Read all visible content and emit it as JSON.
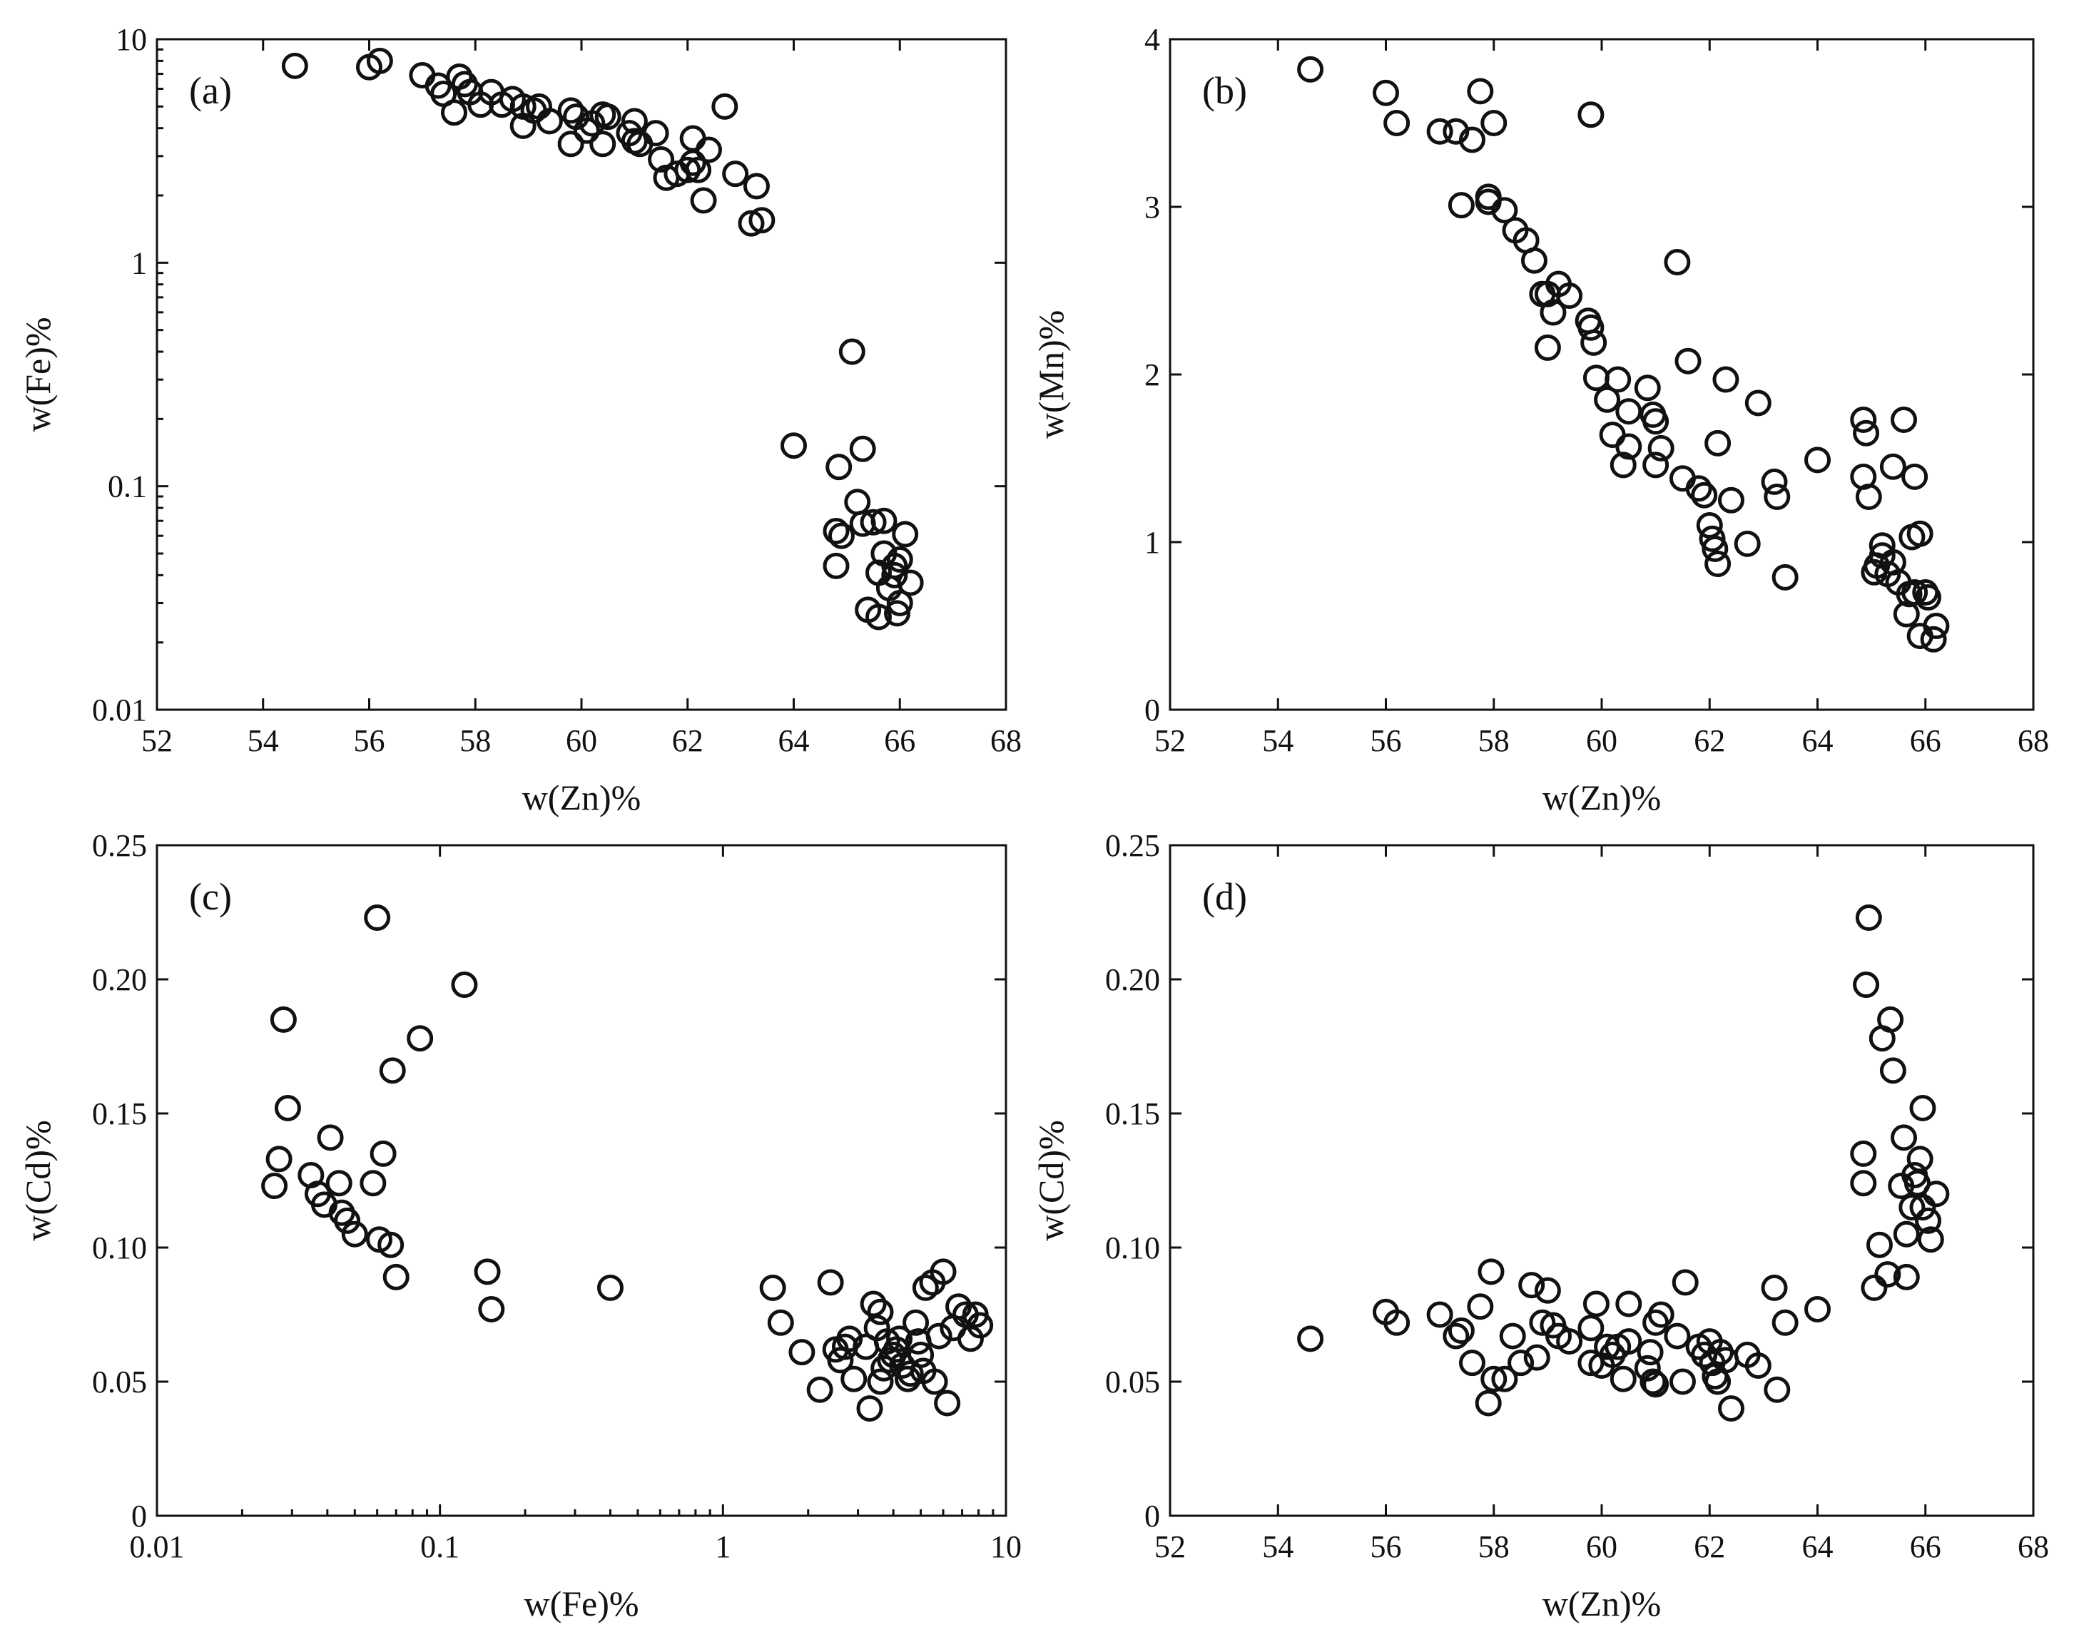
{
  "chart_data": [
    {
      "id": "a",
      "type": "scatter",
      "panel_label": "(a)",
      "xlabel": "w(Zn)%",
      "ylabel": "w(Fe)%",
      "xscale": "linear",
      "yscale": "log",
      "xlim": [
        52,
        68
      ],
      "ylim": [
        0.01,
        10
      ],
      "x_ticks": [
        52,
        54,
        56,
        58,
        60,
        62,
        64,
        66,
        68
      ],
      "x_tick_labels": [
        "52",
        "54",
        "56",
        "58",
        "60",
        "62",
        "64",
        "66",
        "68"
      ],
      "y_ticks": [
        0.01,
        0.1,
        1,
        10
      ],
      "y_tick_labels": [
        "0.01",
        "0.1",
        "1",
        "10"
      ],
      "points": [
        [
          54.6,
          7.6
        ],
        [
          56.0,
          7.5
        ],
        [
          56.2,
          8.0
        ],
        [
          57.0,
          6.9
        ],
        [
          57.3,
          6.2
        ],
        [
          57.4,
          5.7
        ],
        [
          57.6,
          4.7
        ],
        [
          57.7,
          6.8
        ],
        [
          57.8,
          6.3
        ],
        [
          57.9,
          5.8
        ],
        [
          58.1,
          5.1
        ],
        [
          58.3,
          5.8
        ],
        [
          58.5,
          5.1
        ],
        [
          58.7,
          5.4
        ],
        [
          58.9,
          4.1
        ],
        [
          58.9,
          5.0
        ],
        [
          59.1,
          4.8
        ],
        [
          59.2,
          5.0
        ],
        [
          59.4,
          4.3
        ],
        [
          59.8,
          4.8
        ],
        [
          59.9,
          4.5
        ],
        [
          59.8,
          3.4
        ],
        [
          60.1,
          3.9
        ],
        [
          60.2,
          4.2
        ],
        [
          60.4,
          4.6
        ],
        [
          60.5,
          4.5
        ],
        [
          60.4,
          3.4
        ],
        [
          60.9,
          3.8
        ],
        [
          61.0,
          4.3
        ],
        [
          61.0,
          3.5
        ],
        [
          61.1,
          3.4
        ],
        [
          61.4,
          3.8
        ],
        [
          61.5,
          2.9
        ],
        [
          61.6,
          2.4
        ],
        [
          61.8,
          2.5
        ],
        [
          62.0,
          2.6
        ],
        [
          62.1,
          2.8
        ],
        [
          62.1,
          3.6
        ],
        [
          62.2,
          2.6
        ],
        [
          62.3,
          1.9
        ],
        [
          62.4,
          3.2
        ],
        [
          62.7,
          5.0
        ],
        [
          62.9,
          2.5
        ],
        [
          63.2,
          1.5
        ],
        [
          63.3,
          2.2
        ],
        [
          63.4,
          1.55
        ],
        [
          64.0,
          0.152
        ],
        [
          64.8,
          0.044
        ],
        [
          64.8,
          0.063
        ],
        [
          64.85,
          0.122
        ],
        [
          64.9,
          0.06
        ],
        [
          65.1,
          0.4
        ],
        [
          65.2,
          0.085
        ],
        [
          65.3,
          0.147
        ],
        [
          65.3,
          0.068
        ],
        [
          65.4,
          0.028
        ],
        [
          65.5,
          0.069
        ],
        [
          65.6,
          0.026
        ],
        [
          65.6,
          0.041
        ],
        [
          65.7,
          0.07
        ],
        [
          65.7,
          0.05
        ],
        [
          65.8,
          0.035
        ],
        [
          65.9,
          0.04
        ],
        [
          65.9,
          0.044
        ],
        [
          66.0,
          0.047
        ],
        [
          65.95,
          0.027
        ],
        [
          66.0,
          0.03
        ],
        [
          66.1,
          0.061
        ],
        [
          66.2,
          0.037
        ]
      ]
    },
    {
      "id": "b",
      "type": "scatter",
      "panel_label": "(b)",
      "xlabel": "w(Zn)%",
      "ylabel": "w(Mn)%",
      "xscale": "linear",
      "yscale": "linear",
      "xlim": [
        52,
        68
      ],
      "ylim": [
        0,
        4
      ],
      "x_ticks": [
        52,
        54,
        56,
        58,
        60,
        62,
        64,
        66,
        68
      ],
      "x_tick_labels": [
        "52",
        "54",
        "56",
        "58",
        "60",
        "62",
        "64",
        "66",
        "68"
      ],
      "y_ticks": [
        0,
        1,
        2,
        3,
        4
      ],
      "y_tick_labels": [
        "0",
        "1",
        "2",
        "3",
        "4"
      ],
      "points": [
        [
          54.6,
          3.82
        ],
        [
          56.0,
          3.68
        ],
        [
          56.2,
          3.5
        ],
        [
          57.0,
          3.45
        ],
        [
          57.3,
          3.45
        ],
        [
          57.4,
          3.01
        ],
        [
          57.6,
          3.4
        ],
        [
          57.75,
          3.69
        ],
        [
          57.9,
          3.03
        ],
        [
          57.9,
          3.06
        ],
        [
          58.0,
          3.5
        ],
        [
          58.2,
          2.98
        ],
        [
          58.4,
          2.86
        ],
        [
          58.6,
          2.8
        ],
        [
          58.75,
          2.68
        ],
        [
          58.9,
          2.48
        ],
        [
          59.0,
          2.48
        ],
        [
          59.0,
          2.16
        ],
        [
          59.1,
          2.37
        ],
        [
          59.2,
          2.54
        ],
        [
          59.4,
          2.47
        ],
        [
          59.8,
          3.55
        ],
        [
          59.75,
          2.32
        ],
        [
          59.8,
          2.28
        ],
        [
          59.85,
          2.19
        ],
        [
          59.9,
          1.98
        ],
        [
          60.1,
          1.85
        ],
        [
          60.2,
          1.64
        ],
        [
          60.3,
          1.97
        ],
        [
          60.4,
          1.46
        ],
        [
          60.5,
          1.78
        ],
        [
          60.5,
          1.57
        ],
        [
          60.85,
          1.92
        ],
        [
          60.95,
          1.76
        ],
        [
          61.0,
          1.72
        ],
        [
          61.0,
          1.46
        ],
        [
          61.1,
          1.56
        ],
        [
          61.4,
          2.67
        ],
        [
          61.5,
          1.38
        ],
        [
          61.6,
          2.08
        ],
        [
          61.8,
          1.32
        ],
        [
          61.9,
          1.28
        ],
        [
          62.0,
          1.1
        ],
        [
          62.05,
          1.02
        ],
        [
          62.1,
          0.96
        ],
        [
          62.15,
          0.87
        ],
        [
          62.15,
          1.59
        ],
        [
          62.3,
          1.97
        ],
        [
          62.4,
          1.25
        ],
        [
          62.7,
          0.99
        ],
        [
          62.9,
          1.83
        ],
        [
          63.2,
          1.36
        ],
        [
          63.25,
          1.27
        ],
        [
          63.4,
          0.79
        ],
        [
          64.0,
          1.49
        ],
        [
          64.85,
          1.73
        ],
        [
          64.85,
          1.39
        ],
        [
          64.9,
          1.65
        ],
        [
          64.95,
          1.27
        ],
        [
          65.05,
          0.82
        ],
        [
          65.1,
          0.86
        ],
        [
          65.2,
          0.98
        ],
        [
          65.2,
          0.92
        ],
        [
          65.3,
          0.81
        ],
        [
          65.4,
          0.88
        ],
        [
          65.4,
          1.45
        ],
        [
          65.5,
          0.76
        ],
        [
          65.6,
          1.73
        ],
        [
          65.65,
          0.57
        ],
        [
          65.7,
          0.69
        ],
        [
          65.75,
          1.03
        ],
        [
          65.8,
          1.39
        ],
        [
          65.8,
          0.7
        ],
        [
          65.9,
          1.05
        ],
        [
          65.9,
          0.44
        ],
        [
          66.0,
          0.7
        ],
        [
          66.05,
          0.67
        ],
        [
          66.15,
          0.42
        ],
        [
          66.2,
          0.5
        ]
      ]
    },
    {
      "id": "c",
      "type": "scatter",
      "panel_label": "(c)",
      "xlabel": "w(Fe)%",
      "ylabel": "w(Cd)%",
      "xscale": "log",
      "yscale": "linear",
      "xlim": [
        0.01,
        10
      ],
      "ylim": [
        0,
        0.25
      ],
      "x_ticks": [
        0.01,
        0.1,
        1,
        10
      ],
      "x_tick_labels": [
        "0.01",
        "0.1",
        "1",
        "10"
      ],
      "y_ticks": [
        0,
        0.05,
        0.1,
        0.15,
        0.2,
        0.25
      ],
      "y_tick_labels": [
        "0",
        "0.05",
        "0.10",
        "0.15",
        "0.20",
        "0.25"
      ],
      "points": [
        [
          0.026,
          0.123
        ],
        [
          0.027,
          0.133
        ],
        [
          0.028,
          0.185
        ],
        [
          0.029,
          0.152
        ],
        [
          0.035,
          0.127
        ],
        [
          0.037,
          0.12
        ],
        [
          0.039,
          0.116
        ],
        [
          0.041,
          0.141
        ],
        [
          0.044,
          0.124
        ],
        [
          0.045,
          0.113
        ],
        [
          0.047,
          0.11
        ],
        [
          0.05,
          0.105
        ],
        [
          0.058,
          0.124
        ],
        [
          0.06,
          0.223
        ],
        [
          0.061,
          0.103
        ],
        [
          0.063,
          0.135
        ],
        [
          0.067,
          0.101
        ],
        [
          0.068,
          0.166
        ],
        [
          0.07,
          0.089
        ],
        [
          0.085,
          0.178
        ],
        [
          0.122,
          0.198
        ],
        [
          0.147,
          0.091
        ],
        [
          0.152,
          0.077
        ],
        [
          0.4,
          0.085
        ],
        [
          1.5,
          0.085
        ],
        [
          1.6,
          0.072
        ],
        [
          1.9,
          0.061
        ],
        [
          2.2,
          0.047
        ],
        [
          2.4,
          0.087
        ],
        [
          2.5,
          0.062
        ],
        [
          2.6,
          0.058
        ],
        [
          2.7,
          0.063
        ],
        [
          2.8,
          0.066
        ],
        [
          2.9,
          0.051
        ],
        [
          3.2,
          0.063
        ],
        [
          3.3,
          0.04
        ],
        [
          3.4,
          0.079
        ],
        [
          3.5,
          0.07
        ],
        [
          3.6,
          0.05
        ],
        [
          3.6,
          0.076
        ],
        [
          3.7,
          0.055
        ],
        [
          3.8,
          0.065
        ],
        [
          3.9,
          0.058
        ],
        [
          4.0,
          0.06
        ],
        [
          4.1,
          0.062
        ],
        [
          4.2,
          0.066
        ],
        [
          4.3,
          0.056
        ],
        [
          4.5,
          0.051
        ],
        [
          4.6,
          0.053
        ],
        [
          4.8,
          0.072
        ],
        [
          4.9,
          0.065
        ],
        [
          5.0,
          0.06
        ],
        [
          5.1,
          0.054
        ],
        [
          5.2,
          0.085
        ],
        [
          5.5,
          0.087
        ],
        [
          5.6,
          0.05
        ],
        [
          5.8,
          0.067
        ],
        [
          6.0,
          0.091
        ],
        [
          6.2,
          0.042
        ],
        [
          6.5,
          0.07
        ],
        [
          6.8,
          0.078
        ],
        [
          7.2,
          0.075
        ],
        [
          7.5,
          0.066
        ],
        [
          7.8,
          0.075
        ],
        [
          8.1,
          0.071
        ]
      ]
    },
    {
      "id": "d",
      "type": "scatter",
      "panel_label": "(d)",
      "xlabel": "w(Zn)%",
      "ylabel": "w(Cd)%",
      "xscale": "linear",
      "yscale": "linear",
      "xlim": [
        52,
        68
      ],
      "ylim": [
        0,
        0.25
      ],
      "x_ticks": [
        52,
        54,
        56,
        58,
        60,
        62,
        64,
        66,
        68
      ],
      "x_tick_labels": [
        "52",
        "54",
        "56",
        "58",
        "60",
        "62",
        "64",
        "66",
        "68"
      ],
      "y_ticks": [
        0,
        0.05,
        0.1,
        0.15,
        0.2,
        0.25
      ],
      "y_tick_labels": [
        "0",
        "0.05",
        "0.10",
        "0.15",
        "0.20",
        "0.25"
      ],
      "points": [
        [
          54.6,
          0.066
        ],
        [
          56.0,
          0.076
        ],
        [
          56.2,
          0.072
        ],
        [
          57.0,
          0.075
        ],
        [
          57.3,
          0.067
        ],
        [
          57.4,
          0.069
        ],
        [
          57.6,
          0.057
        ],
        [
          57.75,
          0.078
        ],
        [
          57.9,
          0.042
        ],
        [
          57.95,
          0.091
        ],
        [
          58.0,
          0.051
        ],
        [
          58.2,
          0.051
        ],
        [
          58.35,
          0.067
        ],
        [
          58.5,
          0.057
        ],
        [
          58.7,
          0.086
        ],
        [
          58.8,
          0.059
        ],
        [
          58.9,
          0.072
        ],
        [
          59.0,
          0.084
        ],
        [
          59.1,
          0.071
        ],
        [
          59.2,
          0.067
        ],
        [
          59.4,
          0.065
        ],
        [
          59.8,
          0.07
        ],
        [
          59.8,
          0.057
        ],
        [
          59.9,
          0.079
        ],
        [
          60.0,
          0.056
        ],
        [
          60.1,
          0.063
        ],
        [
          60.2,
          0.06
        ],
        [
          60.3,
          0.063
        ],
        [
          60.4,
          0.051
        ],
        [
          60.5,
          0.079
        ],
        [
          60.5,
          0.065
        ],
        [
          60.85,
          0.055
        ],
        [
          60.9,
          0.061
        ],
        [
          60.95,
          0.05
        ],
        [
          61.0,
          0.072
        ],
        [
          61.0,
          0.049
        ],
        [
          61.1,
          0.075
        ],
        [
          61.4,
          0.067
        ],
        [
          61.5,
          0.05
        ],
        [
          61.55,
          0.087
        ],
        [
          61.8,
          0.063
        ],
        [
          61.9,
          0.06
        ],
        [
          62.0,
          0.065
        ],
        [
          62.05,
          0.057
        ],
        [
          62.1,
          0.052
        ],
        [
          62.15,
          0.05
        ],
        [
          62.2,
          0.061
        ],
        [
          62.3,
          0.058
        ],
        [
          62.4,
          0.04
        ],
        [
          62.7,
          0.06
        ],
        [
          62.9,
          0.056
        ],
        [
          63.2,
          0.085
        ],
        [
          63.25,
          0.047
        ],
        [
          63.4,
          0.072
        ],
        [
          64.0,
          0.077
        ],
        [
          64.85,
          0.124
        ],
        [
          64.85,
          0.135
        ],
        [
          64.9,
          0.198
        ],
        [
          64.95,
          0.223
        ],
        [
          65.05,
          0.085
        ],
        [
          65.15,
          0.101
        ],
        [
          65.2,
          0.178
        ],
        [
          65.3,
          0.09
        ],
        [
          65.35,
          0.185
        ],
        [
          65.4,
          0.166
        ],
        [
          65.55,
          0.123
        ],
        [
          65.6,
          0.141
        ],
        [
          65.65,
          0.089
        ],
        [
          65.65,
          0.105
        ],
        [
          65.75,
          0.115
        ],
        [
          65.8,
          0.127
        ],
        [
          65.85,
          0.124
        ],
        [
          65.9,
          0.133
        ],
        [
          65.95,
          0.152
        ],
        [
          65.95,
          0.115
        ],
        [
          66.05,
          0.11
        ],
        [
          66.1,
          0.103
        ],
        [
          66.2,
          0.12
        ]
      ]
    }
  ]
}
